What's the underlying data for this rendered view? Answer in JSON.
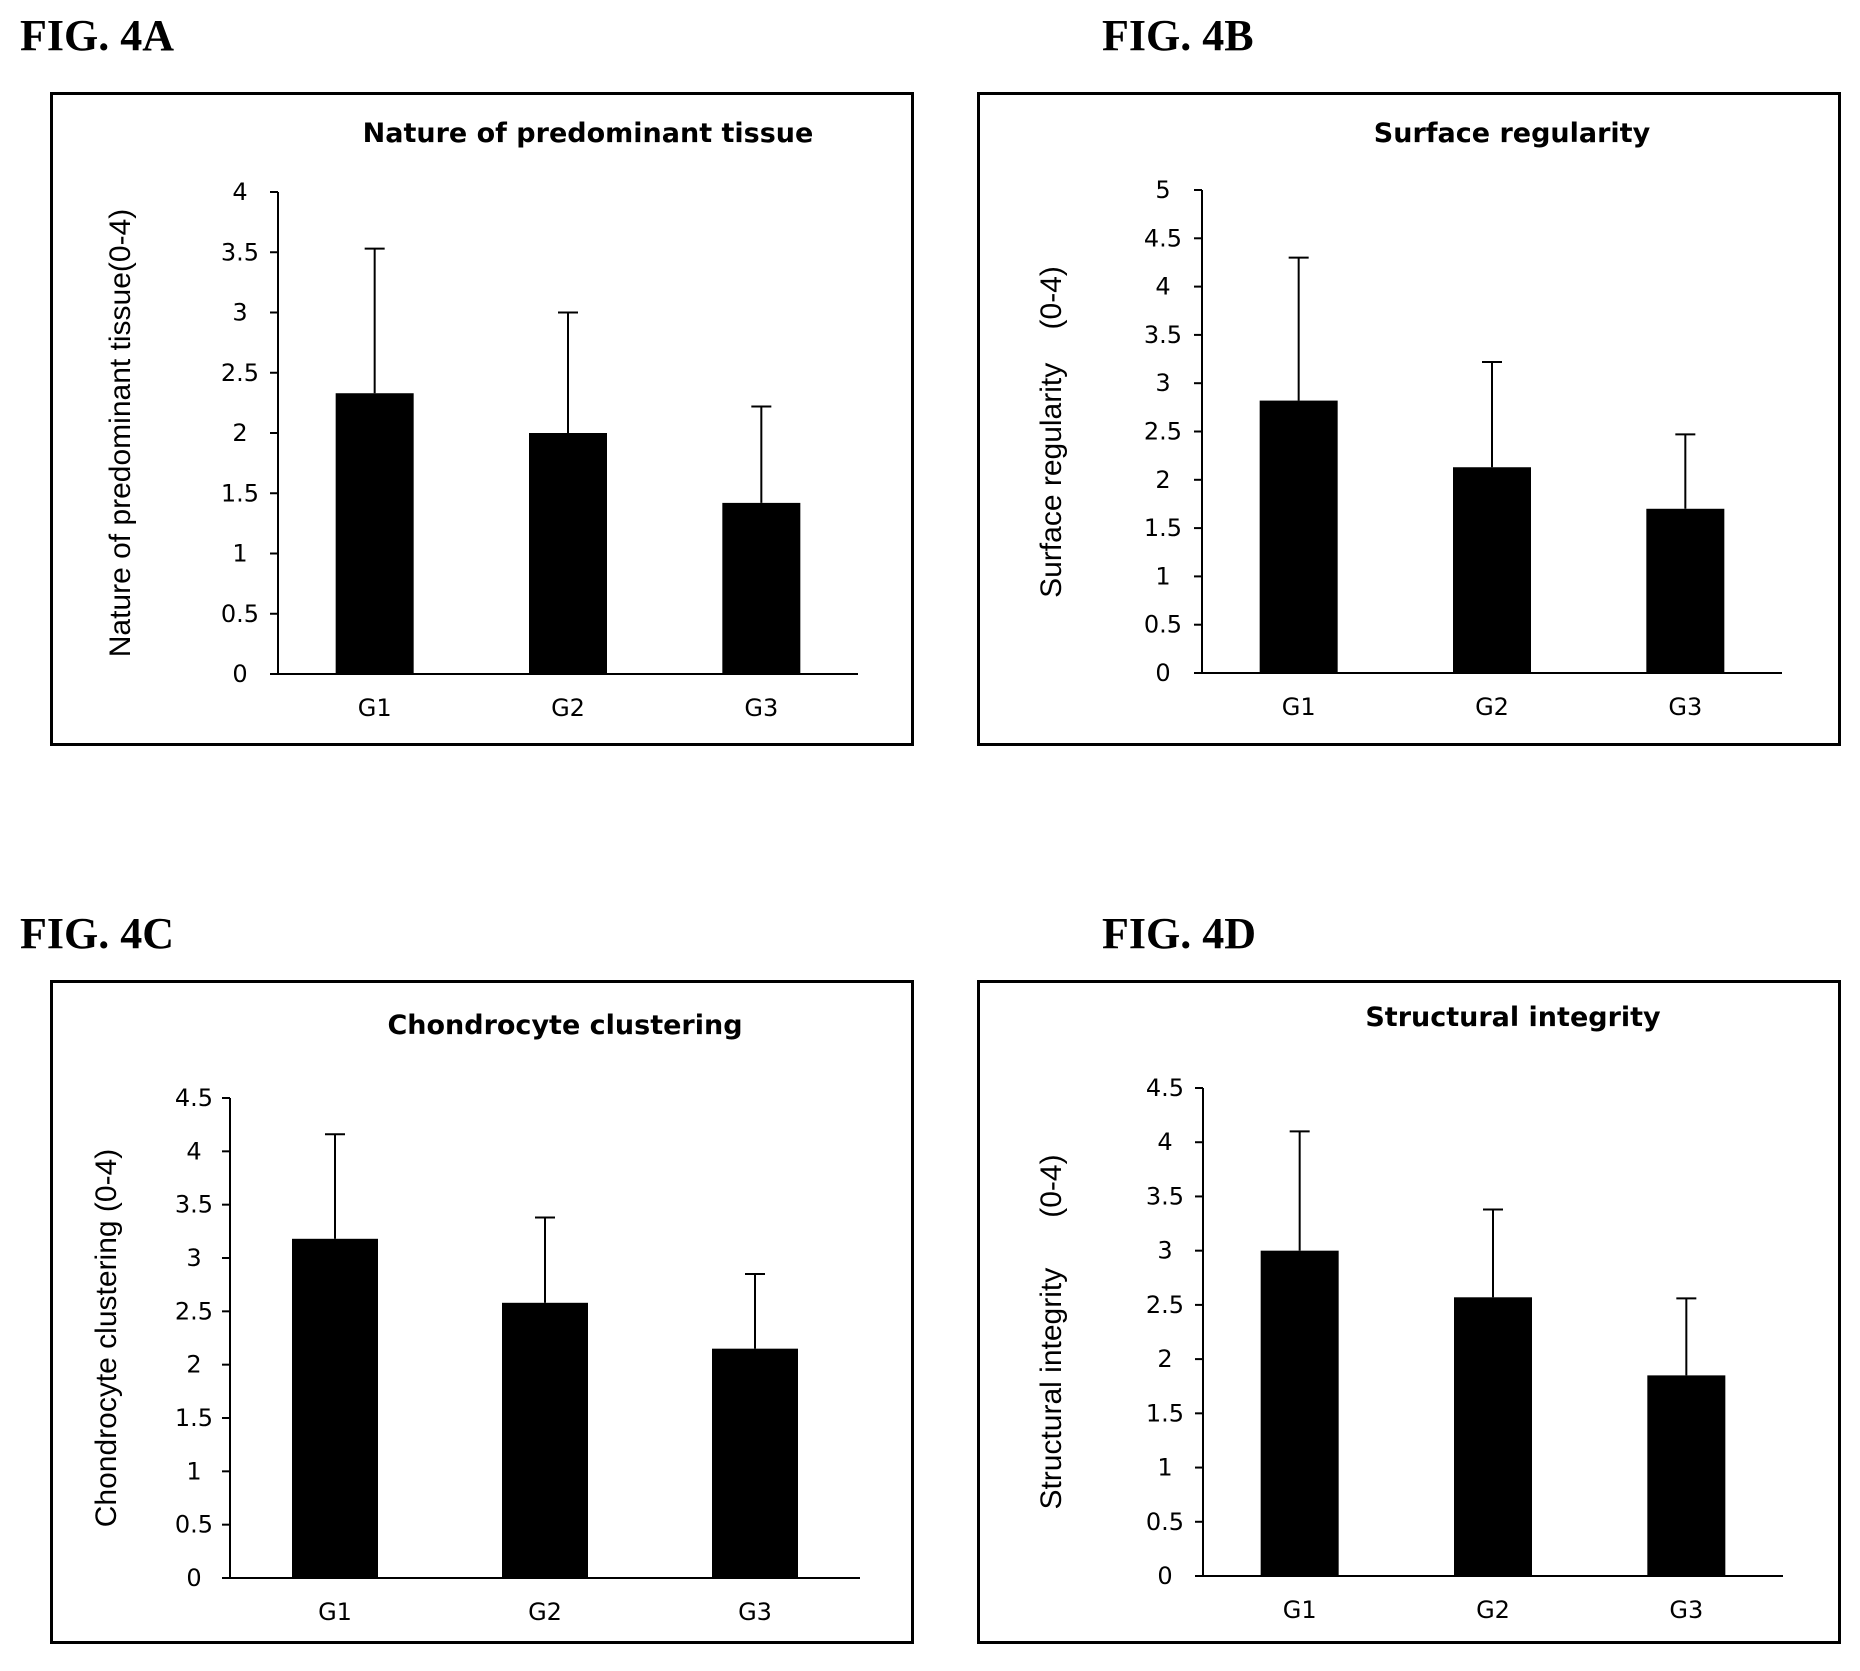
{
  "figure_labels": [
    "FIG. 4A",
    "FIG. 4B",
    "FIG. 4C",
    "FIG. 4D"
  ],
  "chart_data": [
    {
      "type": "bar",
      "title": "Nature of predominant tissue",
      "ylabel": "Nature of predominant tissue(0-4)",
      "xlabel": "",
      "categories": [
        "G1",
        "G2",
        "G3"
      ],
      "values": [
        2.33,
        2.0,
        1.42
      ],
      "error_upper": [
        3.53,
        3.0,
        2.22
      ],
      "ylim": [
        0,
        4
      ],
      "yticks": [
        0,
        0.5,
        1,
        1.5,
        2,
        2.5,
        3,
        3.5,
        4
      ],
      "ytick_labels": [
        "0",
        "0.5",
        "1",
        "1.5",
        "2",
        "2.5",
        "3",
        "3.5",
        "4"
      ],
      "bar_color": "#000000",
      "grid": false,
      "legend": "none"
    },
    {
      "type": "bar",
      "title": "Surface regularity",
      "ylabel": "Surface regularity    (0-4)",
      "xlabel": "",
      "categories": [
        "G1",
        "G2",
        "G3"
      ],
      "values": [
        2.82,
        2.13,
        1.7
      ],
      "error_upper": [
        4.3,
        3.22,
        2.47
      ],
      "ylim": [
        0,
        5
      ],
      "yticks": [
        0,
        0.5,
        1,
        1.5,
        2,
        2.5,
        3,
        3.5,
        4,
        4.5,
        5
      ],
      "ytick_labels": [
        "0",
        "0.5",
        "1",
        "1.5",
        "2",
        "2.5",
        "3",
        "3.5",
        "4",
        "4.5",
        "5"
      ],
      "bar_color": "#000000",
      "grid": false,
      "legend": "none"
    },
    {
      "type": "bar",
      "title": "Chondrocyte clustering",
      "ylabel": "Chondrocyte clustering (0-4)",
      "xlabel": "",
      "categories": [
        "G1",
        "G2",
        "G3"
      ],
      "values": [
        3.18,
        2.58,
        2.15
      ],
      "error_upper": [
        4.16,
        3.38,
        2.85
      ],
      "ylim": [
        0,
        4.5
      ],
      "yticks": [
        0,
        0.5,
        1,
        1.5,
        2,
        2.5,
        3,
        3.5,
        4,
        4.5
      ],
      "ytick_labels": [
        "0",
        "0.5",
        "1",
        "1.5",
        "2",
        "2.5",
        "3",
        "3.5",
        "4",
        "4.5"
      ],
      "bar_color": "#000000",
      "grid": false,
      "legend": "none"
    },
    {
      "type": "bar",
      "title": "Structural integrity",
      "ylabel": "Structural integrity      (0-4)",
      "xlabel": "",
      "categories": [
        "G1",
        "G2",
        "G3"
      ],
      "values": [
        3.0,
        2.57,
        1.85
      ],
      "error_upper": [
        4.1,
        3.38,
        2.56
      ],
      "ylim": [
        0,
        4.5
      ],
      "yticks": [
        0,
        0.5,
        1,
        1.5,
        2,
        2.5,
        3,
        3.5,
        4,
        4.5
      ],
      "ytick_labels": [
        "0",
        "0.5",
        "1",
        "1.5",
        "2",
        "2.5",
        "3",
        "3.5",
        "4",
        "4.5"
      ],
      "bar_color": "#000000",
      "grid": false,
      "legend": "none"
    }
  ]
}
